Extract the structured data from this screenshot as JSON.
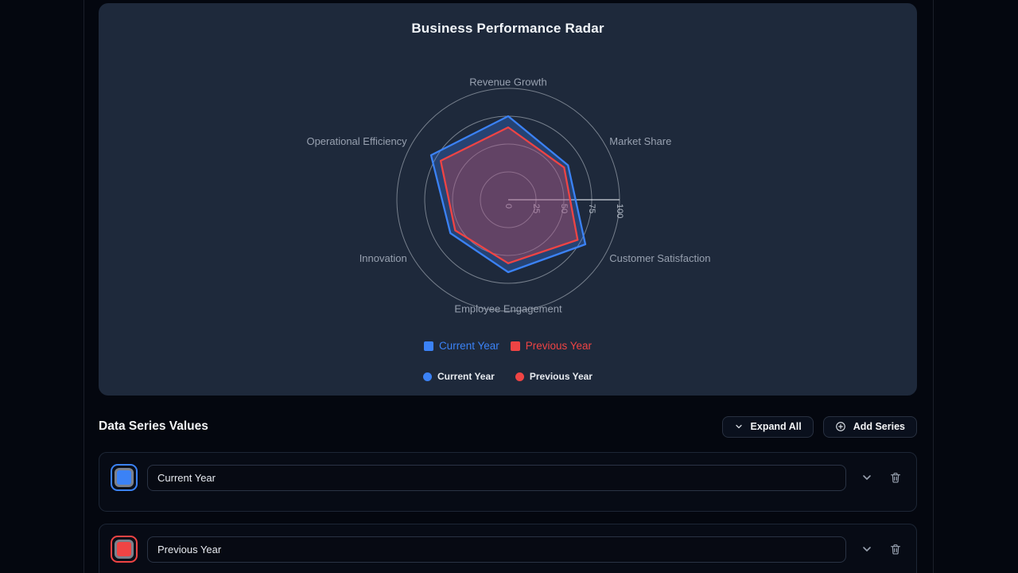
{
  "chart_card": {
    "title": "Business Performance Radar"
  },
  "chart_data": {
    "type": "radar",
    "title": "Business Performance Radar",
    "categories": [
      "Revenue Growth",
      "Market Share",
      "Customer Satisfaction",
      "Employee Engagement",
      "Innovation",
      "Operational Efficiency"
    ],
    "series": [
      {
        "name": "Current Year",
        "color": "#3b82f6",
        "values": [
          75,
          62,
          80,
          65,
          60,
          80
        ]
      },
      {
        "name": "Previous Year",
        "color": "#ef4444",
        "values": [
          65,
          58,
          72,
          57,
          55,
          70
        ]
      }
    ],
    "ticks": [
      0,
      25,
      50,
      75,
      100
    ],
    "rmin": 0,
    "rmax": 100,
    "grid": true,
    "legend_position": "bottom",
    "colors": {
      "grid_line": "rgba(226,232,240,0.45)",
      "axis_line": "rgba(240,244,250,0.85)",
      "axis_label": "#98a1b0",
      "tick_label": "#b2bac6",
      "card_bg": "#1e293b"
    }
  },
  "series_panel": {
    "heading": "Data Series Values",
    "expand_all_label": "Expand All",
    "add_series_label": "Add Series",
    "rows": [
      {
        "name": "Current Year",
        "color": "#3b82f6"
      },
      {
        "name": "Previous Year",
        "color": "#ef4444"
      }
    ]
  }
}
